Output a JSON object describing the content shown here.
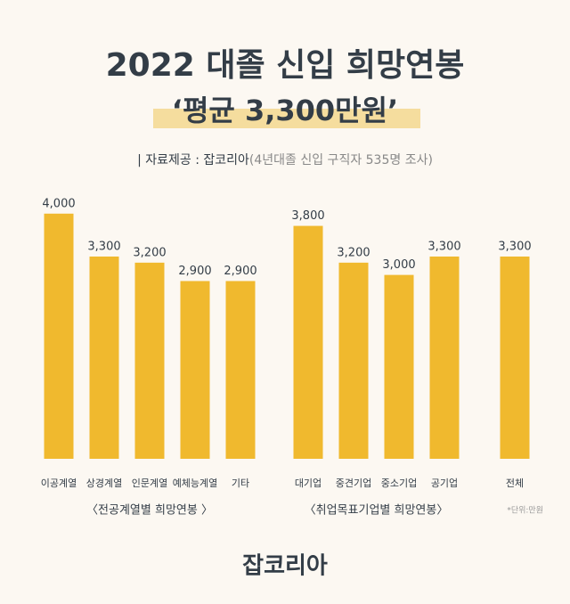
{
  "chart_data": {
    "type": "bar",
    "title": "2022 대졸 신입 희망연봉",
    "subtitle": "‘평균 3,300만원’",
    "source": "| 자료제공 : 잡코리아",
    "source_detail": "(4년대졸 신입 구직자 535명 조사)",
    "color": "#f0b92e",
    "groups": [
      {
        "label": "〈전공계열별 희망연봉 〉",
        "categories": [
          "이공계열",
          "상경계열",
          "인문계열",
          "예체능계열",
          "기타"
        ],
        "values": [
          4000,
          3300,
          3200,
          2900,
          2900
        ],
        "value_labels": [
          "4,000",
          "3,300",
          "3,200",
          "2,900",
          "2,900"
        ]
      },
      {
        "label": "〈취업목표기업별 희망연봉〉",
        "categories": [
          "대기업",
          "중견기업",
          "중소기업",
          "공기업"
        ],
        "values": [
          3800,
          3200,
          3000,
          3300
        ],
        "value_labels": [
          "3,800",
          "3,200",
          "3,000",
          "3,300"
        ]
      },
      {
        "label": null,
        "categories": [
          "전체"
        ],
        "values": [
          3300
        ],
        "value_labels": [
          "3,300"
        ]
      }
    ],
    "note": "*단위:만원"
  },
  "footer": "잡코리아"
}
